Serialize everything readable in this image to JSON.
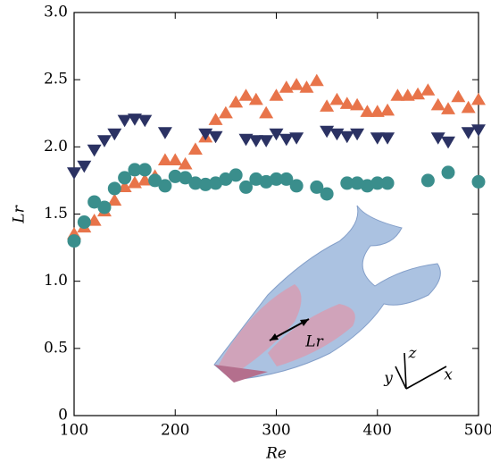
{
  "chart_data": {
    "type": "scatter",
    "xlabel": "Re",
    "ylabel": "Lr",
    "annotations": [
      "Lr",
      "x",
      "y",
      "z"
    ],
    "xlim": [
      100,
      500
    ],
    "xticks": [
      100,
      200,
      300,
      400,
      500
    ],
    "ylim": [
      0,
      3
    ],
    "yticks": [
      0,
      0.5,
      {
        "value": 1,
        "label": "1.0"
      },
      1.5,
      {
        "value": 2,
        "label": "2.0"
      },
      2.5,
      {
        "value": 3,
        "label": "3.0"
      }
    ],
    "series": [
      {
        "marker": "triangle-up",
        "color": "#e8744a",
        "x": [
          100,
          110,
          120,
          130,
          140,
          150,
          160,
          170,
          180,
          190,
          200,
          210,
          220,
          230,
          240,
          250,
          260,
          270,
          280,
          290,
          300,
          310,
          320,
          330,
          340,
          350,
          360,
          370,
          380,
          390,
          400,
          410,
          420,
          430,
          440,
          450,
          460,
          470,
          480,
          490,
          500
        ],
        "values": [
          1.35,
          1.4,
          1.45,
          1.52,
          1.6,
          1.7,
          1.73,
          1.75,
          1.78,
          1.9,
          1.9,
          1.87,
          1.98,
          2.07,
          2.2,
          2.25,
          2.33,
          2.38,
          2.35,
          2.25,
          2.38,
          2.44,
          2.46,
          2.44,
          2.49,
          2.3,
          2.35,
          2.32,
          2.31,
          2.26,
          2.26,
          2.27,
          2.38,
          2.38,
          2.39,
          2.42,
          2.31,
          2.28,
          2.37,
          2.29,
          2.35
        ]
      },
      {
        "marker": "triangle-down",
        "color": "#2b3263",
        "x": [
          100,
          110,
          120,
          130,
          140,
          150,
          160,
          170,
          190,
          230,
          240,
          270,
          280,
          290,
          300,
          310,
          320,
          350,
          360,
          370,
          380,
          400,
          410,
          460,
          470,
          490,
          500
        ],
        "values": [
          1.81,
          1.86,
          1.98,
          2.05,
          2.1,
          2.2,
          2.21,
          2.2,
          2.11,
          2.1,
          2.08,
          2.06,
          2.05,
          2.05,
          2.1,
          2.06,
          2.07,
          2.12,
          2.1,
          2.08,
          2.1,
          2.07,
          2.07,
          2.07,
          2.04,
          2.11,
          2.13
        ]
      },
      {
        "marker": "circle",
        "color": "#3a8e8c",
        "x": [
          100,
          110,
          120,
          130,
          140,
          150,
          160,
          170,
          180,
          190,
          200,
          210,
          220,
          230,
          240,
          250,
          260,
          270,
          280,
          290,
          300,
          310,
          320,
          340,
          350,
          370,
          380,
          390,
          400,
          410,
          450,
          470,
          500
        ],
        "values": [
          1.3,
          1.44,
          1.59,
          1.55,
          1.69,
          1.77,
          1.83,
          1.83,
          1.75,
          1.71,
          1.78,
          1.77,
          1.73,
          1.72,
          1.73,
          1.76,
          1.79,
          1.7,
          1.76,
          1.74,
          1.76,
          1.76,
          1.71,
          1.7,
          1.65,
          1.73,
          1.73,
          1.71,
          1.73,
          1.73,
          1.75,
          1.81,
          1.74
        ]
      }
    ]
  }
}
